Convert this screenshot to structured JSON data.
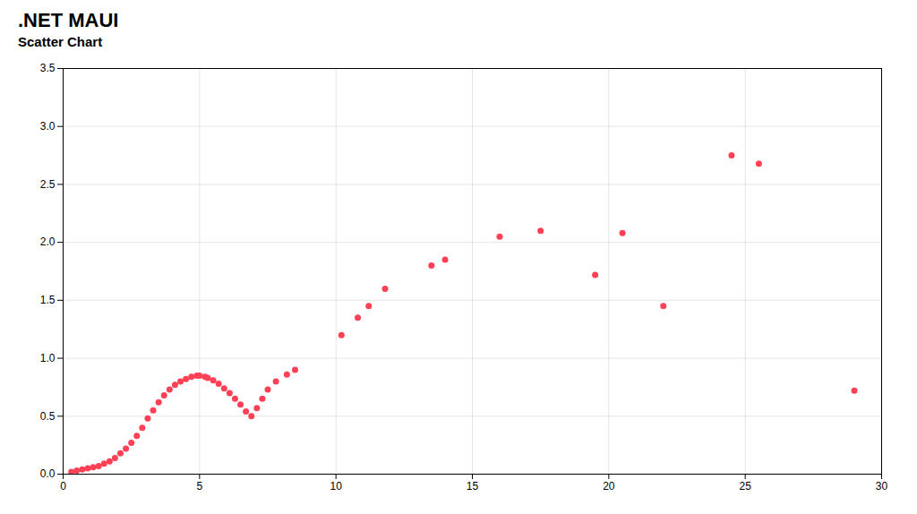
{
  "chart_data": {
    "type": "scatter",
    "title": ".NET MAUI",
    "subtitle": "Scatter Chart",
    "x": [
      0.3,
      0.5,
      0.7,
      0.9,
      1.1,
      1.3,
      1.5,
      1.7,
      1.9,
      2.1,
      2.3,
      2.5,
      2.7,
      2.9,
      3.1,
      3.3,
      3.5,
      3.7,
      3.9,
      4.1,
      4.3,
      4.5,
      4.7,
      4.9,
      5.0,
      5.2,
      5.3,
      5.5,
      5.7,
      5.9,
      6.1,
      6.3,
      6.5,
      6.7,
      6.9,
      7.1,
      7.3,
      7.5,
      7.8,
      8.2,
      8.5,
      10.2,
      10.8,
      11.2,
      11.8,
      13.5,
      14.0,
      16.0,
      17.5,
      19.5,
      20.5,
      22.0,
      24.5,
      25.5,
      29.0
    ],
    "values": [
      0.02,
      0.03,
      0.04,
      0.05,
      0.06,
      0.07,
      0.09,
      0.11,
      0.14,
      0.18,
      0.22,
      0.27,
      0.33,
      0.4,
      0.48,
      0.55,
      0.62,
      0.68,
      0.73,
      0.77,
      0.8,
      0.82,
      0.84,
      0.85,
      0.85,
      0.84,
      0.83,
      0.81,
      0.78,
      0.74,
      0.7,
      0.65,
      0.6,
      0.54,
      0.5,
      0.57,
      0.65,
      0.73,
      0.8,
      0.86,
      0.9,
      1.2,
      1.35,
      1.45,
      1.6,
      1.8,
      1.85,
      2.05,
      2.1,
      1.72,
      2.08,
      1.45,
      2.75,
      2.68,
      0.72
    ],
    "color": "#ff4055",
    "xlim": [
      0,
      30
    ],
    "ylim": [
      0,
      3.5
    ],
    "xticks": [
      0,
      5,
      10,
      15,
      20,
      25,
      30
    ],
    "yticks": [
      {
        "value": 0,
        "label": "0.0"
      },
      0.5,
      {
        "value": 1,
        "label": "1.0"
      },
      1.5,
      {
        "value": 2,
        "label": "2.0"
      },
      2.5,
      {
        "value": 3,
        "label": "3.0"
      },
      3.5
    ],
    "grid": true
  }
}
